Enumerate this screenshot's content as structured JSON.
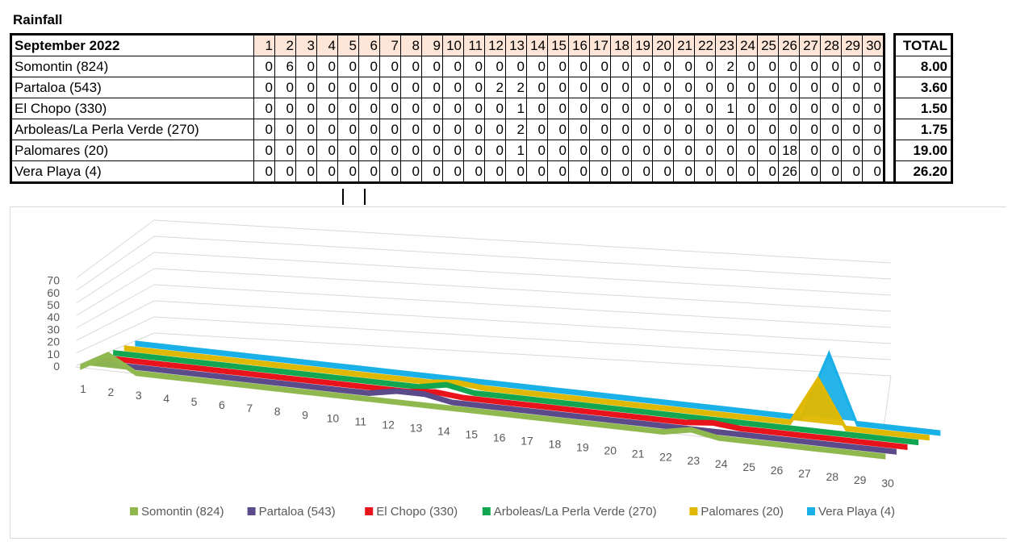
{
  "page_title": "Rainfall",
  "table": {
    "corner": "September 2022",
    "total_header": "TOTAL",
    "days": [
      "1",
      "2",
      "3",
      "4",
      "5",
      "6",
      "7",
      "8",
      "9",
      "10",
      "11",
      "12",
      "13",
      "14",
      "15",
      "16",
      "17",
      "18",
      "19",
      "20",
      "21",
      "22",
      "23",
      "24",
      "25",
      "26",
      "27",
      "28",
      "29",
      "30"
    ],
    "rows": [
      {
        "name": "Somontin (824)",
        "values": [
          "0",
          "6",
          "0",
          "0",
          "0",
          "0",
          "0",
          "0",
          "0",
          "0",
          "0",
          "0",
          "0",
          "0",
          "0",
          "0",
          "0",
          "0",
          "0",
          "0",
          "0",
          "0",
          "2",
          "0",
          "0",
          "0",
          "0",
          "0",
          "0",
          "0"
        ],
        "total": "8.00"
      },
      {
        "name": "Partaloa (543)",
        "values": [
          "0",
          "0",
          "0",
          "0",
          "0",
          "0",
          "0",
          "0",
          "0",
          "0",
          "0",
          "2",
          "2",
          "0",
          "0",
          "0",
          "0",
          "0",
          "0",
          "0",
          "0",
          "0",
          "0",
          "0",
          "0",
          "0",
          "0",
          "0",
          "0",
          "0"
        ],
        "total": "3.60"
      },
      {
        "name": "El Chopo (330)",
        "values": [
          "0",
          "0",
          "0",
          "0",
          "0",
          "0",
          "0",
          "0",
          "0",
          "0",
          "0",
          "0",
          "1",
          "0",
          "0",
          "0",
          "0",
          "0",
          "0",
          "0",
          "0",
          "0",
          "1",
          "0",
          "0",
          "0",
          "0",
          "0",
          "0",
          "0"
        ],
        "total": "1.50"
      },
      {
        "name": "Arboleas/La Perla Verde (270)",
        "values": [
          "0",
          "0",
          "0",
          "0",
          "0",
          "0",
          "0",
          "0",
          "0",
          "0",
          "0",
          "0",
          "2",
          "0",
          "0",
          "0",
          "0",
          "0",
          "0",
          "0",
          "0",
          "0",
          "0",
          "0",
          "0",
          "0",
          "0",
          "0",
          "0",
          "0"
        ],
        "total": "1.75"
      },
      {
        "name": "Palomares (20)",
        "values": [
          "0",
          "0",
          "0",
          "0",
          "0",
          "0",
          "0",
          "0",
          "0",
          "0",
          "0",
          "0",
          "1",
          "0",
          "0",
          "0",
          "0",
          "0",
          "0",
          "0",
          "0",
          "0",
          "0",
          "0",
          "0",
          "18",
          "0",
          "0",
          "0",
          "0"
        ],
        "total": "19.00"
      },
      {
        "name": "Vera Playa (4)",
        "values": [
          "0",
          "0",
          "0",
          "0",
          "0",
          "0",
          "0",
          "0",
          "0",
          "0",
          "0",
          "0",
          "0",
          "0",
          "0",
          "0",
          "0",
          "0",
          "0",
          "0",
          "0",
          "0",
          "0",
          "0",
          "0",
          "26",
          "0",
          "0",
          "0",
          "0"
        ],
        "total": "26.20"
      }
    ]
  },
  "chart_data": {
    "type": "area",
    "title": "",
    "xlabel": "",
    "ylabel": "",
    "x": [
      1,
      2,
      3,
      4,
      5,
      6,
      7,
      8,
      9,
      10,
      11,
      12,
      13,
      14,
      15,
      16,
      17,
      18,
      19,
      20,
      21,
      22,
      23,
      24,
      25,
      26,
      27,
      28,
      29,
      30
    ],
    "yticks": [
      "0",
      "10",
      "20",
      "30",
      "40",
      "50",
      "60",
      "70"
    ],
    "ylim": [
      0,
      70
    ],
    "grid": true,
    "legend_position": "bottom",
    "series": [
      {
        "name": "Somontin (824)",
        "color": "#8fb84f",
        "values": [
          0,
          6,
          0,
          0,
          0,
          0,
          0,
          0,
          0,
          0,
          0,
          0,
          0,
          0,
          0,
          0,
          0,
          0,
          0,
          0,
          0,
          0,
          2,
          0,
          0,
          0,
          0,
          0,
          0,
          0
        ]
      },
      {
        "name": "Partaloa (543)",
        "color": "#5b4b8a",
        "values": [
          0,
          0,
          0,
          0,
          0,
          0,
          0,
          0,
          0,
          0,
          0,
          2,
          2,
          0,
          0,
          0,
          0,
          0,
          0,
          0,
          0,
          0,
          0,
          0,
          0,
          0,
          0,
          0,
          0,
          0
        ]
      },
      {
        "name": "El Chopo (330)",
        "color": "#e8131b",
        "values": [
          0,
          0,
          0,
          0,
          0,
          0,
          0,
          0,
          0,
          0,
          0,
          0,
          1,
          0,
          0,
          0,
          0,
          0,
          0,
          0,
          0,
          0,
          1,
          0,
          0,
          0,
          0,
          0,
          0,
          0
        ]
      },
      {
        "name": "Arboleas/La Perla Verde (270)",
        "color": "#12a650",
        "values": [
          0,
          0,
          0,
          0,
          0,
          0,
          0,
          0,
          0,
          0,
          0,
          0,
          2,
          0,
          0,
          0,
          0,
          0,
          0,
          0,
          0,
          0,
          0,
          0,
          0,
          0,
          0,
          0,
          0,
          0
        ]
      },
      {
        "name": "Palomares (20)",
        "color": "#e0b800",
        "values": [
          0,
          0,
          0,
          0,
          0,
          0,
          0,
          0,
          0,
          0,
          0,
          0,
          1,
          0,
          0,
          0,
          0,
          0,
          0,
          0,
          0,
          0,
          0,
          0,
          0,
          18,
          0,
          0,
          0,
          0
        ]
      },
      {
        "name": "Vera Playa (4)",
        "color": "#1ab0e8",
        "values": [
          0,
          0,
          0,
          0,
          0,
          0,
          0,
          0,
          0,
          0,
          0,
          0,
          0,
          0,
          0,
          0,
          0,
          0,
          0,
          0,
          0,
          0,
          0,
          0,
          0,
          26,
          0,
          0,
          0,
          0
        ]
      }
    ]
  }
}
